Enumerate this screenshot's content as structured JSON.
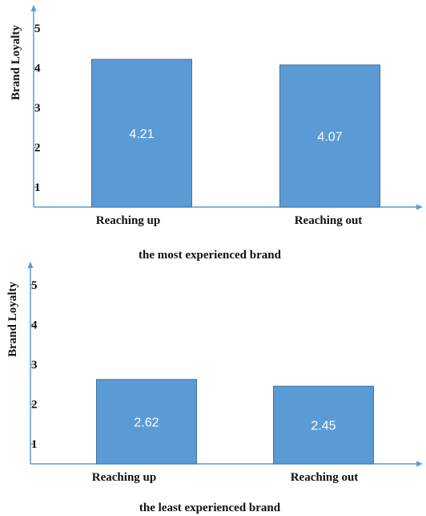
{
  "colors": {
    "bar_fill": "#5b9bd5",
    "bar_stroke": "#41719c",
    "axis": "#5b9bd5",
    "text": "#111111",
    "data_label": "#ffffff"
  },
  "chart_data": [
    {
      "type": "bar",
      "title": "the most experienced brand",
      "xlabel": "",
      "ylabel": "Brand Loyalty",
      "categories": [
        "Reaching up",
        "Reaching out"
      ],
      "values": [
        4.21,
        4.07
      ],
      "data_labels": [
        "4.21",
        "4.07"
      ],
      "ylim": [
        0.5,
        5.5
      ],
      "yticks": [
        1,
        2,
        3,
        4,
        5
      ],
      "ytick_labels": [
        "1",
        "2",
        "3",
        "4",
        "5"
      ],
      "grid": false,
      "legend": "none"
    },
    {
      "type": "bar",
      "title": "the least experienced brand",
      "xlabel": "",
      "ylabel": "Brand Loyalty",
      "categories": [
        "Reaching up",
        "Reaching out"
      ],
      "values": [
        2.62,
        2.45
      ],
      "data_labels": [
        "2.62",
        "2.45"
      ],
      "ylim": [
        0.5,
        5.5
      ],
      "yticks": [
        1,
        2,
        3,
        4,
        5
      ],
      "ytick_labels": [
        "1",
        "2",
        "3",
        "4",
        "5"
      ],
      "grid": false,
      "legend": "none"
    }
  ]
}
